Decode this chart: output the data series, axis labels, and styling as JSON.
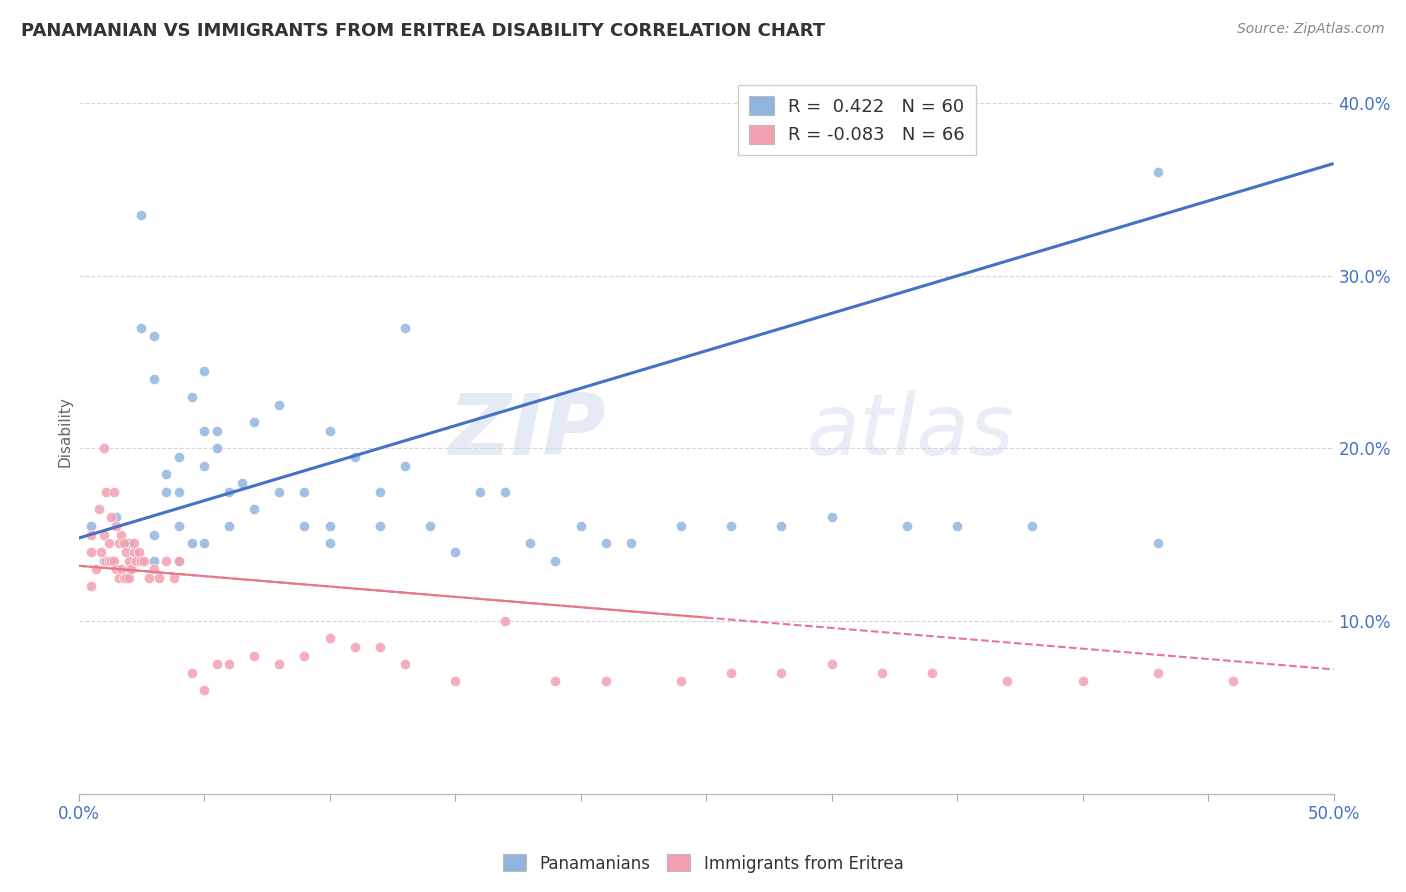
{
  "title": "PANAMANIAN VS IMMIGRANTS FROM ERITREA DISABILITY CORRELATION CHART",
  "source": "Source: ZipAtlas.com",
  "ylabel": "Disability",
  "xlim": [
    0.0,
    0.5
  ],
  "ylim": [
    0.0,
    0.42
  ],
  "xticks": [
    0.0,
    0.05,
    0.1,
    0.15,
    0.2,
    0.25,
    0.3,
    0.35,
    0.4,
    0.45,
    0.5
  ],
  "yticks": [
    0.1,
    0.2,
    0.3,
    0.4
  ],
  "ytick_labels": [
    "10.0%",
    "20.0%",
    "30.0%",
    "40.0%"
  ],
  "blue_color": "#92b4e0",
  "pink_color": "#f4a0b0",
  "blue_line_color": "#4472c4",
  "pink_line_color": "#e8778a",
  "legend_R1": "R =  0.422",
  "legend_N1": "N = 60",
  "legend_R2": "R = -0.083",
  "legend_N2": "N = 66",
  "watermark_zip": "ZIP",
  "watermark_atlas": "atlas",
  "blue_line_x0": 0.0,
  "blue_line_y0": 0.148,
  "blue_line_x1": 0.5,
  "blue_line_y1": 0.365,
  "pink_line_x0": 0.0,
  "pink_line_y0": 0.132,
  "pink_line_x1": 0.5,
  "pink_line_y1": 0.072,
  "blue_scatter_x": [
    0.005,
    0.01,
    0.015,
    0.02,
    0.02,
    0.025,
    0.025,
    0.03,
    0.03,
    0.03,
    0.03,
    0.035,
    0.035,
    0.04,
    0.04,
    0.04,
    0.04,
    0.045,
    0.045,
    0.05,
    0.05,
    0.05,
    0.05,
    0.055,
    0.055,
    0.06,
    0.06,
    0.065,
    0.07,
    0.07,
    0.08,
    0.08,
    0.09,
    0.09,
    0.1,
    0.1,
    0.1,
    0.11,
    0.12,
    0.12,
    0.13,
    0.13,
    0.14,
    0.15,
    0.16,
    0.17,
    0.18,
    0.19,
    0.2,
    0.21,
    0.22,
    0.24,
    0.26,
    0.28,
    0.3,
    0.33,
    0.35,
    0.38,
    0.43,
    0.43
  ],
  "blue_scatter_y": [
    0.155,
    0.135,
    0.16,
    0.13,
    0.145,
    0.335,
    0.27,
    0.135,
    0.15,
    0.24,
    0.265,
    0.175,
    0.185,
    0.135,
    0.155,
    0.175,
    0.195,
    0.145,
    0.23,
    0.145,
    0.19,
    0.21,
    0.245,
    0.2,
    0.21,
    0.155,
    0.175,
    0.18,
    0.165,
    0.215,
    0.175,
    0.225,
    0.155,
    0.175,
    0.145,
    0.155,
    0.21,
    0.195,
    0.155,
    0.175,
    0.19,
    0.27,
    0.155,
    0.14,
    0.175,
    0.175,
    0.145,
    0.135,
    0.155,
    0.145,
    0.145,
    0.155,
    0.155,
    0.155,
    0.16,
    0.155,
    0.155,
    0.155,
    0.36,
    0.145
  ],
  "pink_scatter_x": [
    0.005,
    0.005,
    0.005,
    0.007,
    0.008,
    0.009,
    0.01,
    0.01,
    0.011,
    0.011,
    0.012,
    0.012,
    0.013,
    0.013,
    0.014,
    0.014,
    0.015,
    0.015,
    0.016,
    0.016,
    0.017,
    0.017,
    0.018,
    0.018,
    0.019,
    0.019,
    0.02,
    0.02,
    0.021,
    0.022,
    0.022,
    0.023,
    0.024,
    0.025,
    0.026,
    0.028,
    0.03,
    0.032,
    0.035,
    0.038,
    0.04,
    0.045,
    0.05,
    0.055,
    0.06,
    0.07,
    0.08,
    0.09,
    0.1,
    0.11,
    0.12,
    0.13,
    0.15,
    0.17,
    0.19,
    0.21,
    0.24,
    0.26,
    0.28,
    0.3,
    0.32,
    0.34,
    0.37,
    0.4,
    0.43,
    0.46
  ],
  "pink_scatter_y": [
    0.14,
    0.15,
    0.12,
    0.13,
    0.165,
    0.14,
    0.2,
    0.15,
    0.135,
    0.175,
    0.135,
    0.145,
    0.135,
    0.16,
    0.135,
    0.175,
    0.13,
    0.155,
    0.125,
    0.145,
    0.13,
    0.15,
    0.125,
    0.145,
    0.125,
    0.14,
    0.125,
    0.135,
    0.13,
    0.14,
    0.145,
    0.135,
    0.14,
    0.135,
    0.135,
    0.125,
    0.13,
    0.125,
    0.135,
    0.125,
    0.135,
    0.07,
    0.06,
    0.075,
    0.075,
    0.08,
    0.075,
    0.08,
    0.09,
    0.085,
    0.085,
    0.075,
    0.065,
    0.1,
    0.065,
    0.065,
    0.065,
    0.07,
    0.07,
    0.075,
    0.07,
    0.07,
    0.065,
    0.065,
    0.07,
    0.065
  ],
  "background_color": "#ffffff",
  "grid_color": "#cccccc"
}
